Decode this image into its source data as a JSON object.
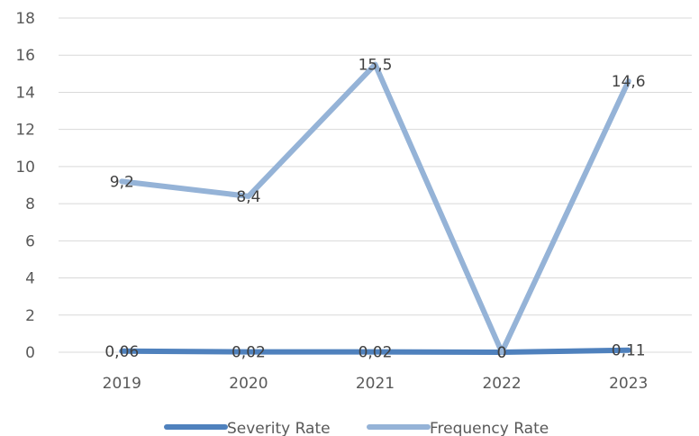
{
  "chart_data": {
    "type": "line",
    "categories": [
      "2019",
      "2020",
      "2021",
      "2022",
      "2023"
    ],
    "series": [
      {
        "name": "Severity Rate",
        "values": [
          0.06,
          0.02,
          0.02,
          0,
          0.11
        ],
        "labels": [
          "0,06",
          "0,02",
          "0,02",
          "0",
          "0,11"
        ],
        "color": "#4f81bd"
      },
      {
        "name": "Frequency Rate",
        "values": [
          9.2,
          8.4,
          15.5,
          0,
          14.6
        ],
        "labels": [
          "9,2",
          "8,4",
          "15,5",
          "0",
          "14,6"
        ],
        "color": "#95b3d7"
      }
    ],
    "ylim": [
      0,
      18
    ],
    "yticks": [
      "0",
      "2",
      "4",
      "6",
      "8",
      "10",
      "12",
      "14",
      "16",
      "18"
    ],
    "grid": true,
    "legend": "bottom"
  }
}
